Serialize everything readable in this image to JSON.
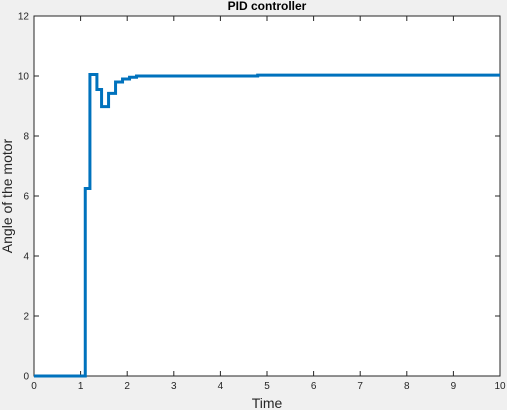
{
  "chart_data": {
    "type": "line",
    "title": "PID controller",
    "xlabel": "Time",
    "ylabel": "Angle of the motor",
    "xlim": [
      0,
      10
    ],
    "ylim": [
      0,
      12
    ],
    "xticks": [
      "0",
      "1",
      "2",
      "3",
      "4",
      "5",
      "6",
      "7",
      "8",
      "9",
      "10"
    ],
    "yticks": [
      "0",
      "2",
      "4",
      "6",
      "8",
      "10",
      "12"
    ],
    "grid": false,
    "line_color": "#0072bd",
    "series": [
      {
        "step": true,
        "x": [
          0,
          1.1,
          1.2,
          1.35,
          1.45,
          1.6,
          1.75,
          1.9,
          2.05,
          2.2,
          4.8,
          10
        ],
        "y": [
          0,
          6.25,
          10.05,
          9.55,
          8.98,
          9.42,
          9.8,
          9.9,
          9.96,
          10.0,
          10.03,
          10.03
        ]
      }
    ]
  }
}
